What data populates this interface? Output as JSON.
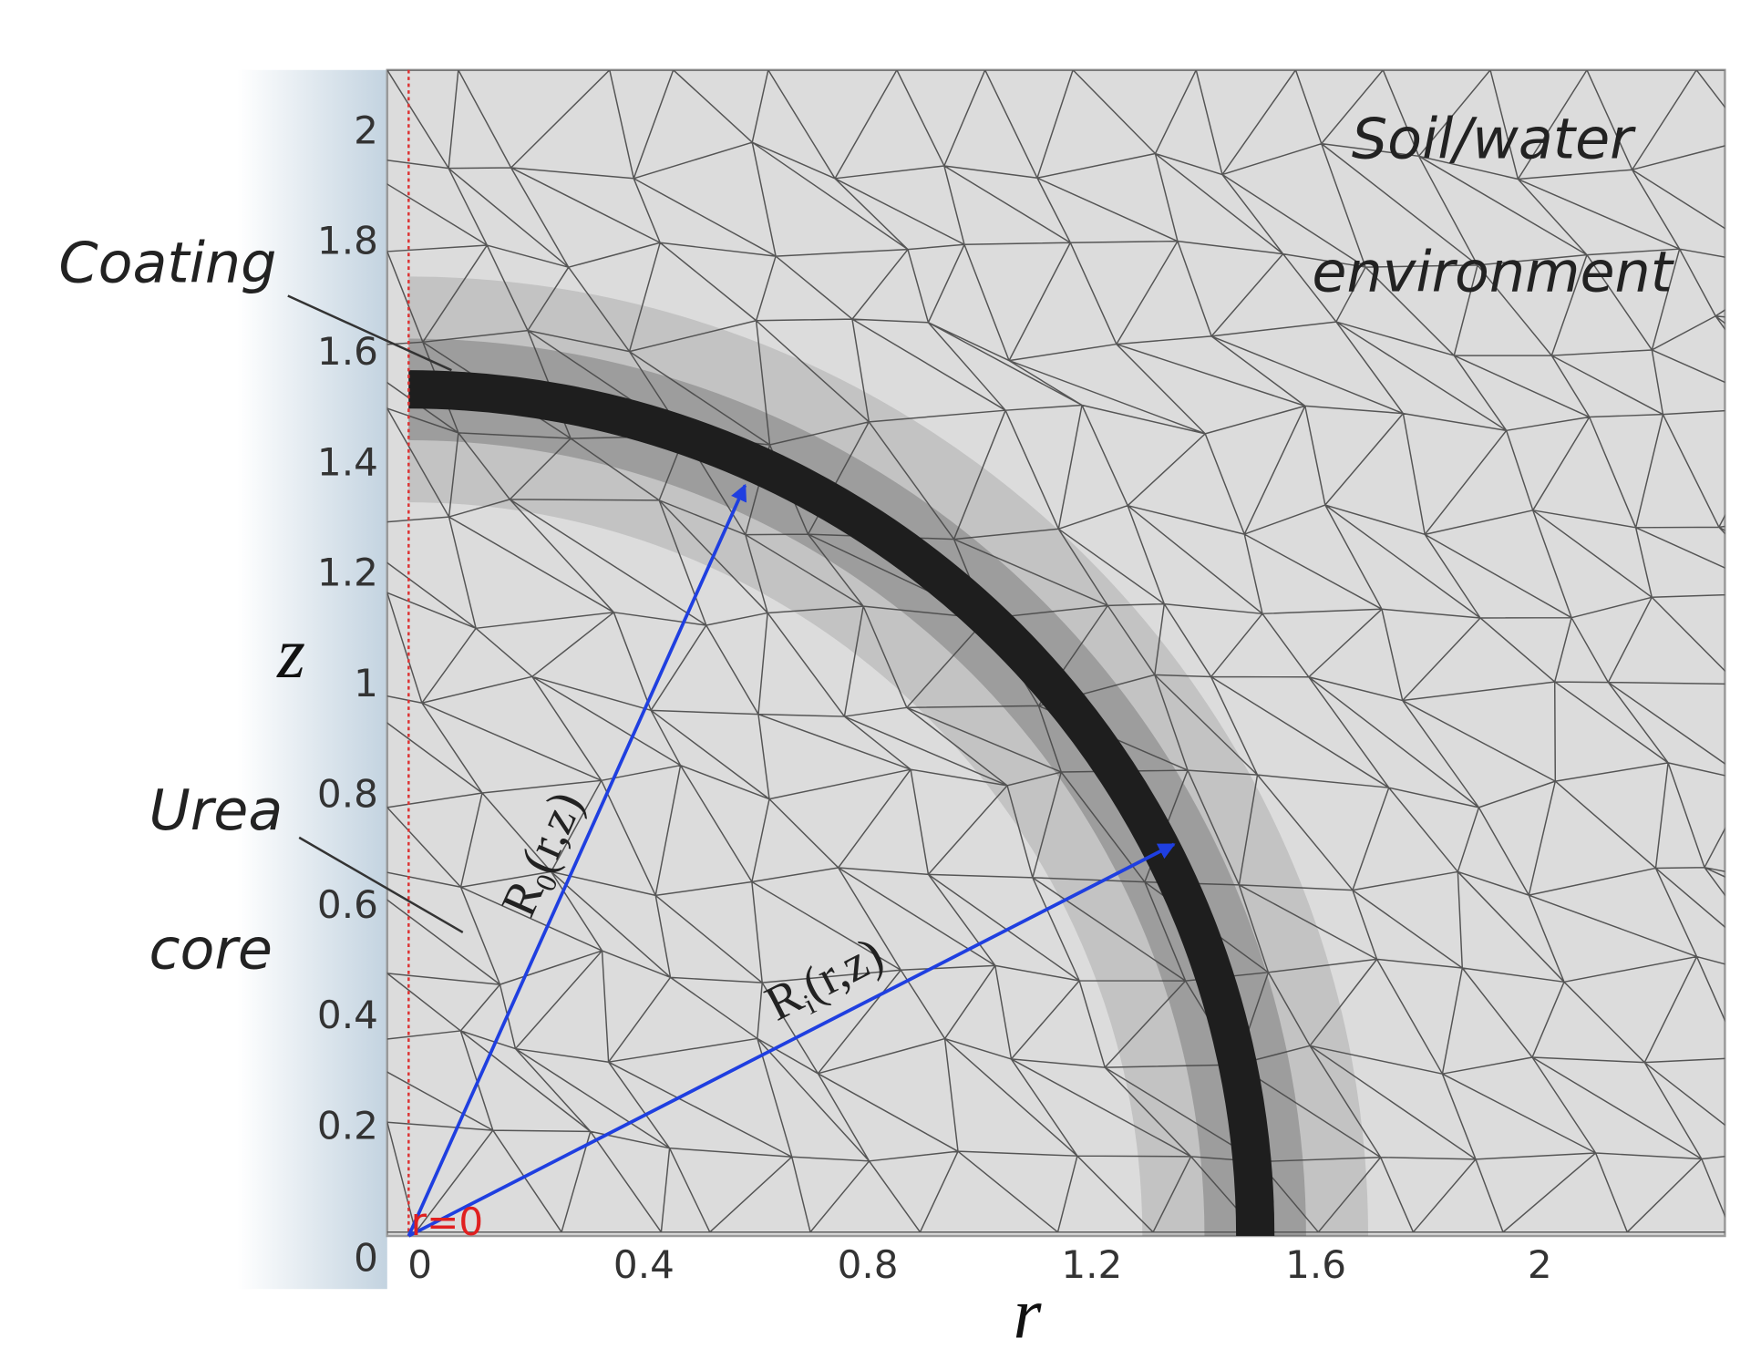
{
  "axes": {
    "x_label": "r",
    "y_label": "z",
    "x_ticks": [
      "0",
      "0.4",
      "0.8",
      "1.2",
      "1.6",
      "2"
    ],
    "y_ticks": [
      "0",
      "0.2",
      "0.4",
      "0.6",
      "0.8",
      "1",
      "1.2",
      "1.4",
      "1.6",
      "1.8",
      "2"
    ]
  },
  "regions": {
    "environment": [
      "Soil/water",
      "environment"
    ],
    "coating": "Coating",
    "core": [
      "Urea",
      "core"
    ]
  },
  "axis_marker": "r=0",
  "arrows": [
    {
      "symbol": "R",
      "subscript": "0",
      "args": "(r,z)"
    },
    {
      "symbol": "R",
      "subscript": "i",
      "args": "(r,z)"
    }
  ]
}
